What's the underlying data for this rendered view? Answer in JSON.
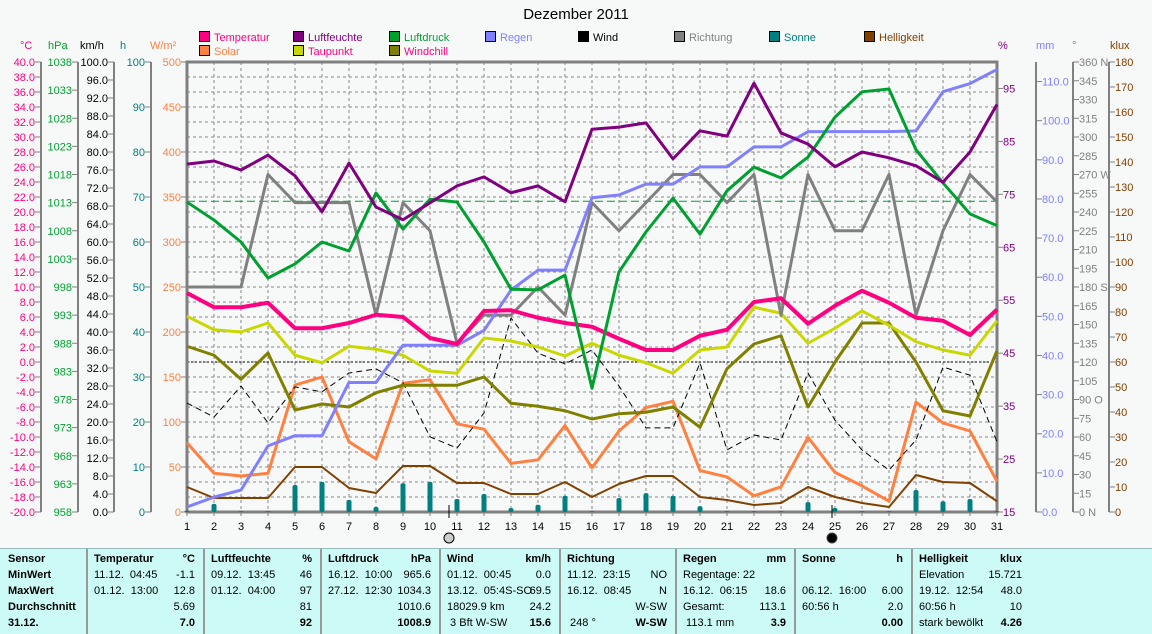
{
  "title": "Dezember 2011",
  "units": {
    "left": [
      {
        "t": "°C",
        "c": "#ff0080"
      },
      {
        "t": "hPa",
        "c": "#00a030"
      },
      {
        "t": "km/h",
        "c": "#000000"
      },
      {
        "t": "h",
        "c": "#008080"
      },
      {
        "t": "W/m²",
        "c": "#ff8040"
      }
    ],
    "right": [
      {
        "t": "%",
        "c": "#800080"
      },
      {
        "t": "mm",
        "c": "#8080ff"
      },
      {
        "t": "°",
        "c": "#808080"
      },
      {
        "t": "klux",
        "c": "#804000"
      }
    ]
  },
  "chart_data": {
    "type": "line",
    "title": "Dezember 2011",
    "x": [
      1,
      2,
      3,
      4,
      5,
      6,
      7,
      8,
      9,
      10,
      11,
      12,
      13,
      14,
      15,
      16,
      17,
      18,
      19,
      20,
      21,
      22,
      23,
      24,
      25,
      26,
      27,
      28,
      29,
      30,
      31
    ],
    "xlabel": "",
    "grid": true,
    "axes": {
      "temp": {
        "unit": "°C",
        "min": -20,
        "max": 40,
        "color": "#ff0080",
        "ticks": [
          "40.0",
          "38.0",
          "36.0",
          "34.0",
          "32.0",
          "30.0",
          "28.0",
          "26.0",
          "24.0",
          "22.0",
          "20.0",
          "18.0",
          "16.0",
          "14.0",
          "12.0",
          "10.0",
          "8.0",
          "6.0",
          "4.0",
          "2.0",
          "0.0",
          "-2.0",
          "-4.0",
          "-6.0",
          "-8.0",
          "-10.0",
          "-12.0",
          "-14.0",
          "-16.0",
          "-18.0",
          "-20.0"
        ]
      },
      "hpa": {
        "unit": "hPa",
        "min": 958,
        "max": 1038,
        "color": "#00a030",
        "ticks": [
          "1038",
          "1033",
          "1028",
          "1023",
          "1018",
          "1013",
          "1008",
          "1003",
          "998",
          "993",
          "988",
          "983",
          "978",
          "973",
          "968",
          "963",
          "958"
        ]
      },
      "kmh": {
        "unit": "km/h",
        "min": 0,
        "max": 100,
        "color": "#000000",
        "ticks": [
          "100.0",
          "96.0",
          "92.0",
          "88.0",
          "84.0",
          "80.0",
          "76.0",
          "72.0",
          "68.0",
          "64.0",
          "60.0",
          "56.0",
          "52.0",
          "48.0",
          "44.0",
          "40.0",
          "36.0",
          "32.0",
          "28.0",
          "24.0",
          "20.0",
          "16.0",
          "12.0",
          "8.0",
          "4.0",
          "0.0"
        ]
      },
      "h": {
        "unit": "h",
        "min": 0,
        "max": 100,
        "color": "#008080",
        "ticks": [
          "100",
          "90",
          "80",
          "70",
          "60",
          "50",
          "40",
          "30",
          "20",
          "10",
          "0"
        ]
      },
      "wm2": {
        "unit": "W/m²",
        "min": 0,
        "max": 500,
        "color": "#ff8040",
        "ticks": [
          "500",
          "450",
          "400",
          "350",
          "300",
          "250",
          "200",
          "150",
          "100",
          "50",
          "0"
        ]
      },
      "pct": {
        "unit": "%",
        "min": 15,
        "max": 100,
        "color": "#800080",
        "ticks": [
          "95",
          "85",
          "75",
          "65",
          "55",
          "45",
          "35",
          "25",
          "15"
        ]
      },
      "mm": {
        "unit": "mm",
        "min": 0,
        "max": 115,
        "color": "#8080ff",
        "ticks": [
          "110.0",
          "100.0",
          "90.0",
          "80.0",
          "70.0",
          "60.0",
          "50.0",
          "40.0",
          "30.0",
          "20.0",
          "10.0",
          "0.0"
        ]
      },
      "deg": {
        "unit": "°",
        "min": 0,
        "max": 360,
        "color": "#808080",
        "ticks": [
          "360 N",
          "345",
          "330",
          "315",
          "300",
          "285",
          "270 W",
          "255",
          "240",
          "225",
          "210",
          "195",
          "180 S",
          "165",
          "150",
          "135",
          "120",
          "105",
          "90  O",
          "75",
          "60",
          "45",
          "30",
          "15",
          "0    N"
        ]
      },
      "klux": {
        "unit": "klux",
        "min": 0,
        "max": 180,
        "color": "#804000",
        "ticks": [
          "180",
          "170",
          "160",
          "150",
          "140",
          "130",
          "120",
          "110",
          "100",
          "90",
          "80",
          "70",
          "60",
          "50",
          "40",
          "30",
          "20",
          "10",
          "0"
        ]
      }
    },
    "reference_lines": [
      {
        "axis": "hpa",
        "value": 1013.25,
        "color": "#00a030"
      },
      {
        "axis": "temp",
        "value": 0,
        "color": "#000000"
      }
    ],
    "series": [
      {
        "name": "Temperatur",
        "axis": "temp",
        "color": "#ff0080",
        "kind": "line",
        "values": [
          9.2,
          7.3,
          7.3,
          7.9,
          4.5,
          4.5,
          5.2,
          6.3,
          6.0,
          3.2,
          2.4,
          6.8,
          6.9,
          5.9,
          5.2,
          4.7,
          3.1,
          1.6,
          1.6,
          3.5,
          4.3,
          8.0,
          8.5,
          5.1,
          7.5,
          9.5,
          7.9,
          5.9,
          5.5,
          3.6,
          7.0
        ]
      },
      {
        "name": "Luftfeuchte",
        "axis": "pct",
        "color": "#800080",
        "kind": "line",
        "values": [
          80.7,
          81.3,
          79.6,
          82.4,
          78.5,
          71.7,
          80.9,
          72.6,
          70.2,
          73.4,
          76.6,
          78.3,
          75.3,
          76.6,
          73.6,
          87.3,
          87.7,
          88.5,
          81.7,
          87.0,
          86.0,
          96.0,
          86.6,
          84.5,
          80.2,
          83.0,
          81.9,
          80.4,
          77.3,
          83.0,
          92
        ]
      },
      {
        "name": "Luftdruck",
        "axis": "hpa",
        "color": "#00a030",
        "kind": "line",
        "values": [
          1013.1,
          1009.9,
          1006.0,
          999.6,
          1002.1,
          1006.0,
          1004.4,
          1014.7,
          1008.3,
          1013.6,
          1013.1,
          1006.0,
          997.6,
          997.5,
          1000.1,
          980.0,
          1000.7,
          1007.8,
          1013.8,
          1007.4,
          1015.1,
          1019.3,
          1017.4,
          1021.1,
          1028.2,
          1032.7,
          1033.2,
          1022.4,
          1016.5,
          1011.0,
          1008.9
        ]
      },
      {
        "name": "Regen",
        "axis": "mm",
        "color": "#8080ff",
        "kind": "line",
        "values": [
          1.3,
          3.8,
          5.6,
          16.9,
          19.5,
          19.5,
          33.1,
          33.1,
          42.6,
          42.6,
          42.6,
          46.4,
          56.7,
          61.8,
          61.8,
          80.3,
          81.0,
          83.8,
          83.8,
          88.2,
          88.2,
          93.3,
          93.3,
          97.2,
          97.2,
          97.2,
          97.2,
          97.4,
          107.4,
          109.5,
          113.1
        ]
      },
      {
        "name": "Wind",
        "axis": "kmh",
        "color": "#000000",
        "kind": "dashed",
        "values": [
          24.2,
          21.1,
          28.0,
          19.8,
          27.8,
          26.7,
          30.9,
          31.8,
          28.7,
          16.7,
          14.2,
          22.0,
          43.1,
          35.3,
          32.9,
          36.0,
          28.0,
          18.7,
          18.7,
          33.1,
          13.8,
          17.1,
          16.0,
          30.9,
          20.4,
          13.8,
          9.3,
          16.0,
          32.2,
          30.4,
          15.6
        ]
      },
      {
        "name": "Richtung",
        "axis": "deg",
        "color": "#808080",
        "kind": "line",
        "values": [
          180,
          180,
          180,
          270,
          247.5,
          247.5,
          247.5,
          157.5,
          247.5,
          225,
          135,
          157.5,
          157.5,
          180,
          157.5,
          247.5,
          225,
          247.5,
          270,
          270,
          247.5,
          270,
          157.5,
          270,
          225,
          225,
          270,
          157.5,
          225,
          270,
          248
        ]
      },
      {
        "name": "Sonne",
        "axis": "h",
        "color": "#008080",
        "kind": "bar",
        "values": [
          0.3,
          1.8,
          0.2,
          0.2,
          6.0,
          6.7,
          2.7,
          1.1,
          6.4,
          6.7,
          2.9,
          4.0,
          0.9,
          1.6,
          3.6,
          0.2,
          3.1,
          4.2,
          3.6,
          1.3,
          0.2,
          0.2,
          0.2,
          2.2,
          0.9,
          0.2,
          0.2,
          4.9,
          2.4,
          2.9,
          0.2
        ]
      },
      {
        "name": "Helligkeit",
        "axis": "klux",
        "color": "#804000",
        "kind": "thin",
        "values": [
          10,
          5.6,
          5.6,
          5.6,
          18,
          18,
          9.6,
          7.6,
          18.4,
          18.4,
          11.6,
          11.6,
          7.2,
          7.2,
          12,
          6,
          11.2,
          14.4,
          14.4,
          6,
          4.8,
          2.8,
          3.6,
          10,
          6,
          3.6,
          2,
          14.8,
          12,
          11.6,
          4.26
        ]
      },
      {
        "name": "Solar",
        "axis": "wm2",
        "color": "#ff8040",
        "kind": "line",
        "values": [
          77,
          43,
          40,
          43,
          141,
          150,
          78,
          59,
          143,
          147,
          98,
          92,
          54,
          58,
          96,
          49,
          90,
          116,
          123,
          46,
          39,
          18,
          28,
          83,
          44,
          29,
          12,
          122,
          99,
          90,
          34
        ]
      },
      {
        "name": "Taupunkt",
        "axis": "temp",
        "color": "#c8d800",
        "kind": "line",
        "values": [
          6.1,
          4.3,
          4.0,
          5.2,
          0.9,
          -0.1,
          2.1,
          1.7,
          0.9,
          -1.2,
          -1.5,
          3.2,
          2.8,
          2.0,
          0.8,
          2.5,
          0.9,
          -0.1,
          -1.5,
          1.6,
          2.0,
          7.3,
          6.5,
          2.5,
          4.5,
          6.8,
          4.9,
          2.7,
          1.6,
          0.9,
          5.5
        ]
      },
      {
        "name": "Windchill",
        "axis": "temp",
        "color": "#808000",
        "kind": "line",
        "values": [
          2.1,
          0.9,
          -2.3,
          1.2,
          -6.4,
          -5.6,
          -6.0,
          -4.1,
          -3.1,
          -3.1,
          -3.1,
          -2.0,
          -5.5,
          -5.9,
          -6.5,
          -7.6,
          -6.9,
          -6.7,
          -6.0,
          -8.7,
          -0.9,
          2.4,
          3.5,
          -6.0,
          0.0,
          5.2,
          5.2,
          0.0,
          -6.5,
          -7.2,
          1.5
        ]
      }
    ],
    "legend_label_colors": {
      "Temperatur": "#ff0080",
      "Luftfeuchte": "#800080",
      "Luftdruck": "#00a030",
      "Regen": "#8080ff",
      "Wind": "#000000",
      "Richtung": "#808080",
      "Sonne": "#008080",
      "Helligkeit": "#804000",
      "Solar": "#ff8040",
      "Taupunkt": "#ff0080",
      "Windchill": "#ff0080"
    },
    "legend_placement": "top"
  },
  "stats": {
    "row_labels": [
      "Sensor",
      "MinWert",
      "MaxWert",
      "Durchschnitt",
      "31.12."
    ],
    "columns": [
      {
        "header": "Temperatur",
        "unit": "°C",
        "rows": [
          [
            "11.12.  04:45",
            "-1.1"
          ],
          [
            "01.12.  13:00",
            "12.8"
          ],
          [
            "",
            "5.69"
          ],
          [
            "",
            "7.0"
          ]
        ]
      },
      {
        "header": "Luftfeuchte",
        "unit": "%",
        "rows": [
          [
            "09.12.  13:45",
            "46"
          ],
          [
            "01.12.  04:00",
            "97"
          ],
          [
            "",
            "81"
          ],
          [
            "",
            "92"
          ]
        ]
      },
      {
        "header": "Luftdruck",
        "unit": "hPa",
        "rows": [
          [
            "16.12.  10:00",
            "965.6"
          ],
          [
            "27.12.  12:30",
            "1034.3"
          ],
          [
            "",
            "1010.6"
          ],
          [
            "",
            "1008.9"
          ]
        ]
      },
      {
        "header": "Wind",
        "unit": "km/h",
        "rows": [
          [
            "01.12.  00:45",
            "0.0"
          ],
          [
            "13.12.  05:4S-SO",
            "69.5"
          ],
          [
            "18029.9 km",
            "24.2"
          ],
          [
            " 3 Bft W-SW",
            "15.6"
          ]
        ]
      },
      {
        "header": "Richtung",
        "unit": "",
        "rows": [
          [
            "11.12.  23:15",
            "NO"
          ],
          [
            "16.12.  08:45",
            "N"
          ],
          [
            "",
            "W-SW"
          ],
          [
            " 248 °",
            "W-SW"
          ]
        ]
      },
      {
        "header": "Regen",
        "unit": "mm",
        "rows": [
          [
            "Regentage: 22",
            ""
          ],
          [
            "16.12.  06:15",
            "18.6"
          ],
          [
            "Gesamt:",
            "113.1"
          ],
          [
            " 113.1 mm",
            "3.9"
          ]
        ]
      },
      {
        "header": "Sonne",
        "unit": "h",
        "rows": [
          [
            "",
            ""
          ],
          [
            "06.12.  16:00",
            "6.00"
          ],
          [
            "60:56 h",
            "2.0"
          ],
          [
            "",
            "0.00"
          ]
        ]
      },
      {
        "header": "Helligkeit",
        "unit": "klux",
        "rows": [
          [
            "Elevation",
            "15.721"
          ],
          [
            "19.12.  12:54",
            "48.0"
          ],
          [
            "60:56 h",
            "10"
          ],
          [
            "stark bewölkt",
            "4.26"
          ]
        ]
      }
    ]
  }
}
